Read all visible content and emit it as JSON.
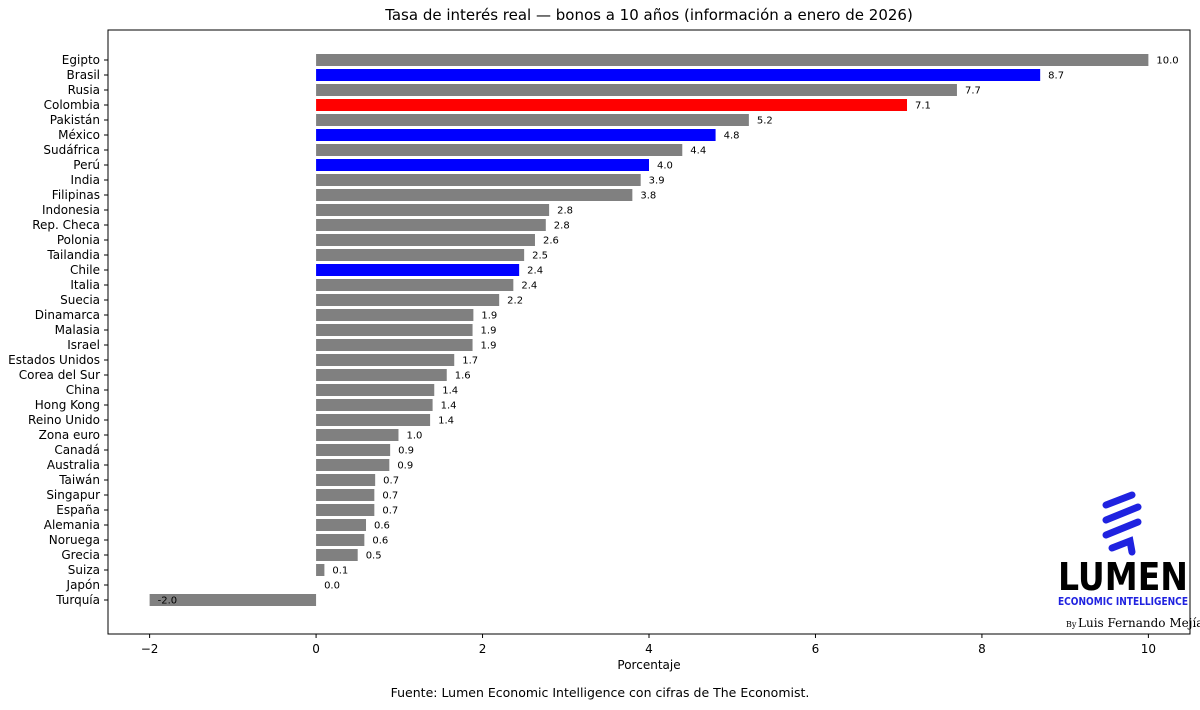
{
  "chart_data": {
    "type": "bar",
    "orientation": "horizontal",
    "title": "Tasa de interés real — bonos a 10 años (información a enero de 2026)",
    "xlabel": "Porcentaje",
    "ylabel": "",
    "xlim": [
      -2.5,
      10.5
    ],
    "xticks": [
      -2,
      0,
      2,
      4,
      6,
      8,
      10
    ],
    "grid": false,
    "categories": [
      "Egipto",
      "Brasil",
      "Rusia",
      "Colombia",
      "Pakistán",
      "México",
      "Sudáfrica",
      "Perú",
      "India",
      "Filipinas",
      "Indonesia",
      "Rep. Checa",
      "Polonia",
      "Tailandia",
      "Chile",
      "Italia",
      "Suecia",
      "Dinamarca",
      "Malasia",
      "Israel",
      "Estados Unidos",
      "Corea del Sur",
      "China",
      "Hong Kong",
      "Reino Unido",
      "Zona euro",
      "Canadá",
      "Australia",
      "Taiwán",
      "Singapur",
      "España",
      "Alemania",
      "Noruega",
      "Grecia",
      "Suiza",
      "Japón",
      "Turquía"
    ],
    "values": [
      10.0,
      8.7,
      7.7,
      7.1,
      5.2,
      4.8,
      4.4,
      4.0,
      3.9,
      3.8,
      2.8,
      2.76,
      2.63,
      2.5,
      2.44,
      2.37,
      2.2,
      1.89,
      1.88,
      1.88,
      1.66,
      1.57,
      1.42,
      1.4,
      1.37,
      0.99,
      0.89,
      0.88,
      0.71,
      0.7,
      0.7,
      0.6,
      0.58,
      0.5,
      0.1,
      0.0,
      -2.0
    ],
    "labels": [
      "10.0",
      "8.7",
      "7.7",
      "7.1",
      "5.2",
      "4.8",
      "4.4",
      "4.0",
      "3.9",
      "3.8",
      "2.8",
      "2.8",
      "2.6",
      "2.5",
      "2.4",
      "2.4",
      "2.2",
      "1.9",
      "1.9",
      "1.9",
      "1.7",
      "1.6",
      "1.4",
      "1.4",
      "1.4",
      "1.0",
      "0.9",
      "0.9",
      "0.7",
      "0.7",
      "0.7",
      "0.6",
      "0.6",
      "0.5",
      "0.1",
      "0.0",
      "-2.0"
    ],
    "colors": [
      "#808080",
      "#0000ff",
      "#808080",
      "#ff0000",
      "#808080",
      "#0000ff",
      "#808080",
      "#0000ff",
      "#808080",
      "#808080",
      "#808080",
      "#808080",
      "#808080",
      "#808080",
      "#0000ff",
      "#808080",
      "#808080",
      "#808080",
      "#808080",
      "#808080",
      "#808080",
      "#808080",
      "#808080",
      "#808080",
      "#808080",
      "#808080",
      "#808080",
      "#808080",
      "#808080",
      "#808080",
      "#808080",
      "#808080",
      "#808080",
      "#808080",
      "#808080",
      "#808080",
      "#808080"
    ],
    "source": "Fuente: Lumen Economic Intelligence con cifras de The Economist."
  },
  "logo": {
    "icon": "lumen-coil-icon",
    "wordmark": "LUMEN",
    "subtitle": "ECONOMIC INTELLIGENCE",
    "by_prefix": "By",
    "author": "Luis Fernando Mejía",
    "accent_color": "#1f22e0"
  }
}
